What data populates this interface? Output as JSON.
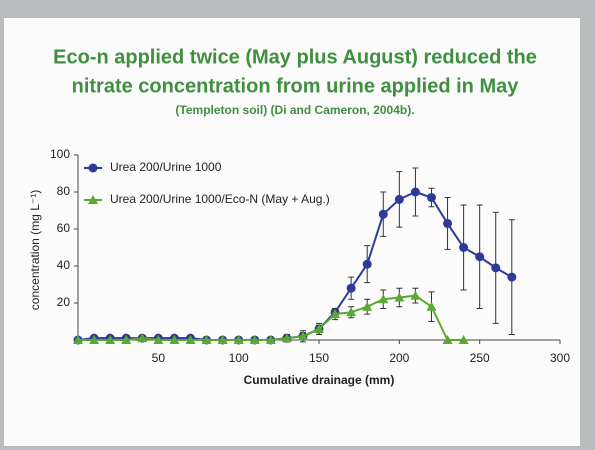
{
  "chart_data": {
    "type": "line",
    "title": [
      "Eco-n applied twice (May plus August) reduced the",
      "nitrate concentration from urine applied in May"
    ],
    "subtitle": "(Templeton soil) (Di and Cameron, 2004b).",
    "y_label": "concentration (mg L⁻¹)",
    "x_label": "Cumulative drainage (mm)",
    "xlim": [
      0,
      300
    ],
    "xticks": [
      50,
      100,
      150,
      200,
      250,
      300
    ],
    "ylim": [
      0,
      100
    ],
    "yticks": [
      20,
      40,
      60,
      80,
      100
    ],
    "series": [
      {
        "name": "Urea 200/Urine 1000",
        "color": "#2e3a9a",
        "marker": "circle",
        "x": [
          0,
          10,
          20,
          30,
          40,
          50,
          60,
          70,
          80,
          90,
          100,
          110,
          120,
          130,
          140,
          150,
          160,
          170,
          180,
          190,
          200,
          210,
          220,
          230,
          240,
          250,
          260,
          270
        ],
        "values": [
          0,
          1,
          1,
          1,
          1,
          1,
          1,
          1,
          0,
          0,
          0,
          0,
          0,
          1,
          2,
          6,
          15,
          28,
          41,
          68,
          76,
          80,
          77,
          63,
          50,
          45,
          39,
          34
        ],
        "errors": [
          0,
          1,
          1,
          1,
          1,
          1,
          1,
          1,
          1,
          1,
          1,
          1,
          1,
          2,
          3,
          3,
          2,
          6,
          10,
          12,
          15,
          13,
          5,
          14,
          23,
          28,
          30,
          31
        ]
      },
      {
        "name": "Urea 200/Urine 1000/Eco-N (May + Aug.)",
        "color": "#5aa832",
        "marker": "triangle",
        "x": [
          0,
          10,
          20,
          30,
          40,
          50,
          60,
          70,
          80,
          90,
          100,
          110,
          120,
          130,
          140,
          150,
          160,
          170,
          180,
          190,
          200,
          210,
          220,
          230,
          240
        ],
        "values": [
          0,
          0,
          0,
          0,
          1,
          0,
          0,
          0,
          0,
          0,
          0,
          0,
          0,
          1,
          2,
          6,
          14,
          15,
          18,
          22,
          23,
          24,
          18,
          0,
          0
        ],
        "errors": [
          0,
          0,
          0,
          0,
          0,
          0,
          0,
          0,
          0,
          0,
          0,
          0,
          0,
          1,
          2,
          2,
          3,
          3,
          4,
          5,
          5,
          4,
          8,
          0,
          0
        ]
      }
    ]
  }
}
